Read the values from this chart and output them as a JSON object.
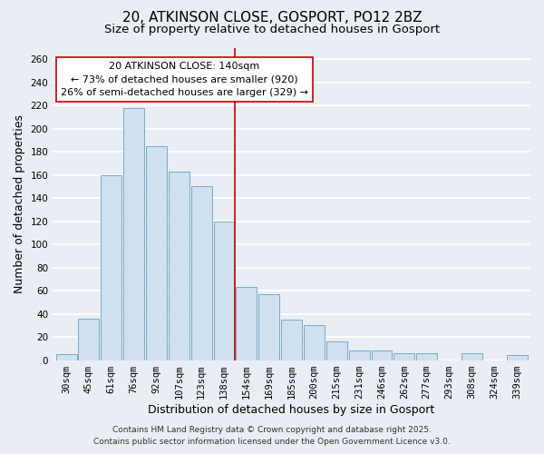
{
  "title": "20, ATKINSON CLOSE, GOSPORT, PO12 2BZ",
  "subtitle": "Size of property relative to detached houses in Gosport",
  "xlabel": "Distribution of detached houses by size in Gosport",
  "ylabel": "Number of detached properties",
  "bar_color": "#cfe0f0",
  "bar_edge_color": "#7aaac8",
  "categories": [
    "30sqm",
    "45sqm",
    "61sqm",
    "76sqm",
    "92sqm",
    "107sqm",
    "123sqm",
    "138sqm",
    "154sqm",
    "169sqm",
    "185sqm",
    "200sqm",
    "215sqm",
    "231sqm",
    "246sqm",
    "262sqm",
    "277sqm",
    "293sqm",
    "308sqm",
    "324sqm",
    "339sqm"
  ],
  "values": [
    5,
    36,
    160,
    218,
    185,
    163,
    150,
    120,
    63,
    57,
    35,
    30,
    16,
    8,
    8,
    6,
    6,
    0,
    6,
    0,
    4
  ],
  "ylim": [
    0,
    270
  ],
  "yticks": [
    0,
    20,
    40,
    60,
    80,
    100,
    120,
    140,
    160,
    180,
    200,
    220,
    240,
    260
  ],
  "vline_x": 7.5,
  "vline_color": "#cc0000",
  "annotation_title": "20 ATKINSON CLOSE: 140sqm",
  "annotation_line1": "← 73% of detached houses are smaller (920)",
  "annotation_line2": "26% of semi-detached houses are larger (329) →",
  "annotation_box_color": "#ffffff",
  "annotation_box_edge": "#cc0000",
  "footer1": "Contains HM Land Registry data © Crown copyright and database right 2025.",
  "footer2": "Contains public sector information licensed under the Open Government Licence v3.0.",
  "background_color": "#e8eef4",
  "grid_color": "#ffffff",
  "title_fontsize": 11,
  "subtitle_fontsize": 9.5,
  "axis_label_fontsize": 9,
  "tick_fontsize": 7.5,
  "footer_fontsize": 6.5,
  "annotation_fontsize": 8
}
